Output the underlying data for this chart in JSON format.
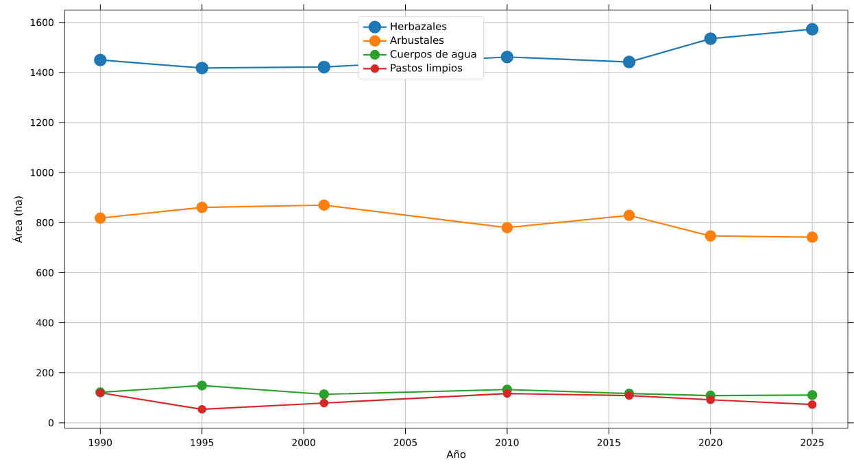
{
  "chart_data": {
    "type": "line",
    "xlabel": "Año",
    "ylabel": "Área (ha)",
    "x": [
      1990,
      1995,
      2001,
      2010,
      2016,
      2020,
      2025
    ],
    "series": [
      {
        "name": "Herbazales",
        "color": "#1f77b4",
        "values": [
          1450,
          1418,
          1422,
          1462,
          1442,
          1535,
          1573
        ]
      },
      {
        "name": "Arbustales",
        "color": "#ff7f0e",
        "values": [
          818,
          861,
          870,
          780,
          829,
          747,
          742
        ]
      },
      {
        "name": "Cuerpos de agua",
        "color": "#2ca02c",
        "values": [
          122,
          149,
          114,
          133,
          117,
          109,
          111
        ]
      },
      {
        "name": "Pastos limpios",
        "color": "#d62728",
        "values": [
          120,
          54,
          79,
          117,
          109,
          92,
          73
        ]
      }
    ],
    "xlim": [
      1988.25,
      2026.75
    ],
    "ylim": [
      -22,
      1649
    ],
    "xticks": [
      1990,
      1995,
      2000,
      2005,
      2010,
      2015,
      2020,
      2025
    ],
    "yticks": [
      0,
      200,
      400,
      600,
      800,
      1000,
      1200,
      1400,
      1600
    ],
    "grid": true,
    "legend": "top",
    "marker": "circle",
    "line_style": "solid"
  }
}
